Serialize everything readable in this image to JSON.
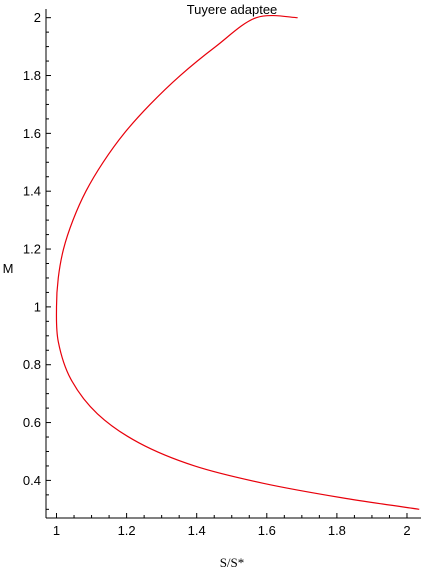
{
  "chart_data": {
    "type": "line",
    "title": "Tuyere adaptee",
    "xlabel": "S/S*",
    "ylabel": "M",
    "xlim": [
      0.97,
      2.04
    ],
    "ylim": [
      0.27,
      2.03
    ],
    "xticks": [
      1,
      1.2,
      1.4,
      1.6,
      1.8,
      2
    ],
    "xtick_labels": [
      "1",
      "1.2",
      "1.4",
      "1.6",
      "1.8",
      "2"
    ],
    "yticks": [
      0.4,
      0.6,
      0.8,
      1,
      1.2,
      1.4,
      1.6,
      1.8,
      2
    ],
    "ytick_labels": [
      "0.4",
      "0.6",
      "0.8",
      "1",
      "1.2",
      "1.4",
      "1.6",
      "1.8",
      "2"
    ],
    "grid": false,
    "series": [
      {
        "color": "#e8000b",
        "x": [
          2.035,
          1.814,
          1.59,
          1.394,
          1.235,
          1.117,
          1.041,
          1.005,
          1.0,
          1.005,
          1.02,
          1.047,
          1.084,
          1.133,
          1.193,
          1.267,
          1.353,
          1.454,
          1.57,
          1.688
        ],
        "y": [
          0.3,
          0.34,
          0.39,
          0.45,
          0.53,
          0.63,
          0.75,
          0.88,
          1.0,
          1.1,
          1.2,
          1.3,
          1.4,
          1.5,
          1.6,
          1.7,
          1.8,
          1.9,
          2.0,
          2.0
        ]
      }
    ]
  }
}
